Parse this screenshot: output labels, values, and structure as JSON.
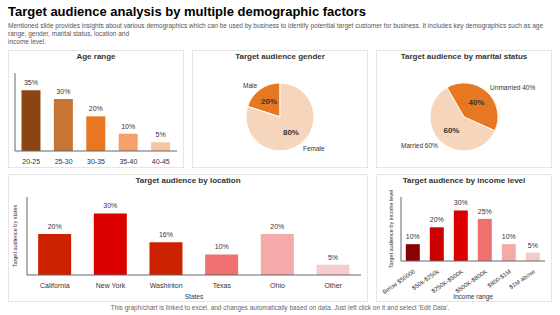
{
  "title": "Target audience analysis by multiple demographic factors",
  "subtitle": "Mentioned slide provides insights about various demographics which can be used by business to identify potential target customer for business. It includes key demographics such as age range, gender, marital status, location and\nincome level.",
  "annotations": [
    "This graph/chart is linked to excel, and changes automatically based on data. Just left click on it and select 'Edit Data'."
  ],
  "chart_data": [
    {
      "type": "bar",
      "title": "Age range",
      "categories": [
        "20-25",
        "25-30",
        "30-35",
        "35-40",
        "40-45"
      ],
      "values": [
        35,
        30,
        20,
        10,
        5
      ],
      "value_labels": [
        "35%",
        "30%",
        "20%",
        "10%",
        "5%"
      ],
      "colors": [
        "#8B4513",
        "#C87533",
        "#E87722",
        "#F5A06A",
        "#F5C4A0"
      ],
      "ylim": [
        0,
        45
      ],
      "data_labels": true,
      "tick_labels": "x"
    },
    {
      "type": "pie",
      "title": "Target audience gender",
      "categories": [
        "Male",
        "Female"
      ],
      "values": [
        20,
        80
      ],
      "value_labels": [
        "20%",
        "80%"
      ],
      "colors": [
        "#E87722",
        "#F5D5BC"
      ],
      "data_labels": true
    },
    {
      "type": "pie",
      "title": "Target audience by marital status",
      "categories": [
        "Married 60%",
        "Unmarried 40%"
      ],
      "values": [
        60,
        40
      ],
      "value_labels": [
        "60%",
        "40%"
      ],
      "colors": [
        "#F5D5BC",
        "#E87722"
      ],
      "data_labels": true
    },
    {
      "type": "bar",
      "title": "Target audience by location",
      "xlabel": "States",
      "ylabel": "Target audience by states",
      "categories": [
        "California",
        "New York",
        "Washinton",
        "Texas",
        "Ohio",
        "Other"
      ],
      "values": [
        20,
        30,
        16,
        10,
        20,
        5
      ],
      "value_labels": [
        "20%",
        "30%",
        "16%",
        "10%",
        "20%",
        "5%"
      ],
      "colors": [
        "#CC2200",
        "#DD0000",
        "#CC2200",
        "#F07070",
        "#F5AAAA",
        "#F5CCCC"
      ],
      "ylim": [
        0,
        38
      ],
      "data_labels": true,
      "tick_labels": "x"
    },
    {
      "type": "bar",
      "title": "Target audience by income level",
      "xlabel": "Income range",
      "ylabel": "Target audience by income level",
      "categories": [
        "Below $50000",
        "$50k-$250k",
        "$250K-$500K",
        "$500K-$800K",
        "$800-$1M",
        "$1M above"
      ],
      "values": [
        10,
        20,
        30,
        25,
        10,
        5
      ],
      "value_labels": [
        "10%",
        "20%",
        "30%",
        "25%",
        "10%",
        "5%"
      ],
      "colors": [
        "#8B0000",
        "#CC0000",
        "#DD0000",
        "#F07070",
        "#F5AAAA",
        "#F5CCCC"
      ],
      "ylim": [
        0,
        38
      ],
      "data_labels": true,
      "tick_labels": "x"
    }
  ]
}
